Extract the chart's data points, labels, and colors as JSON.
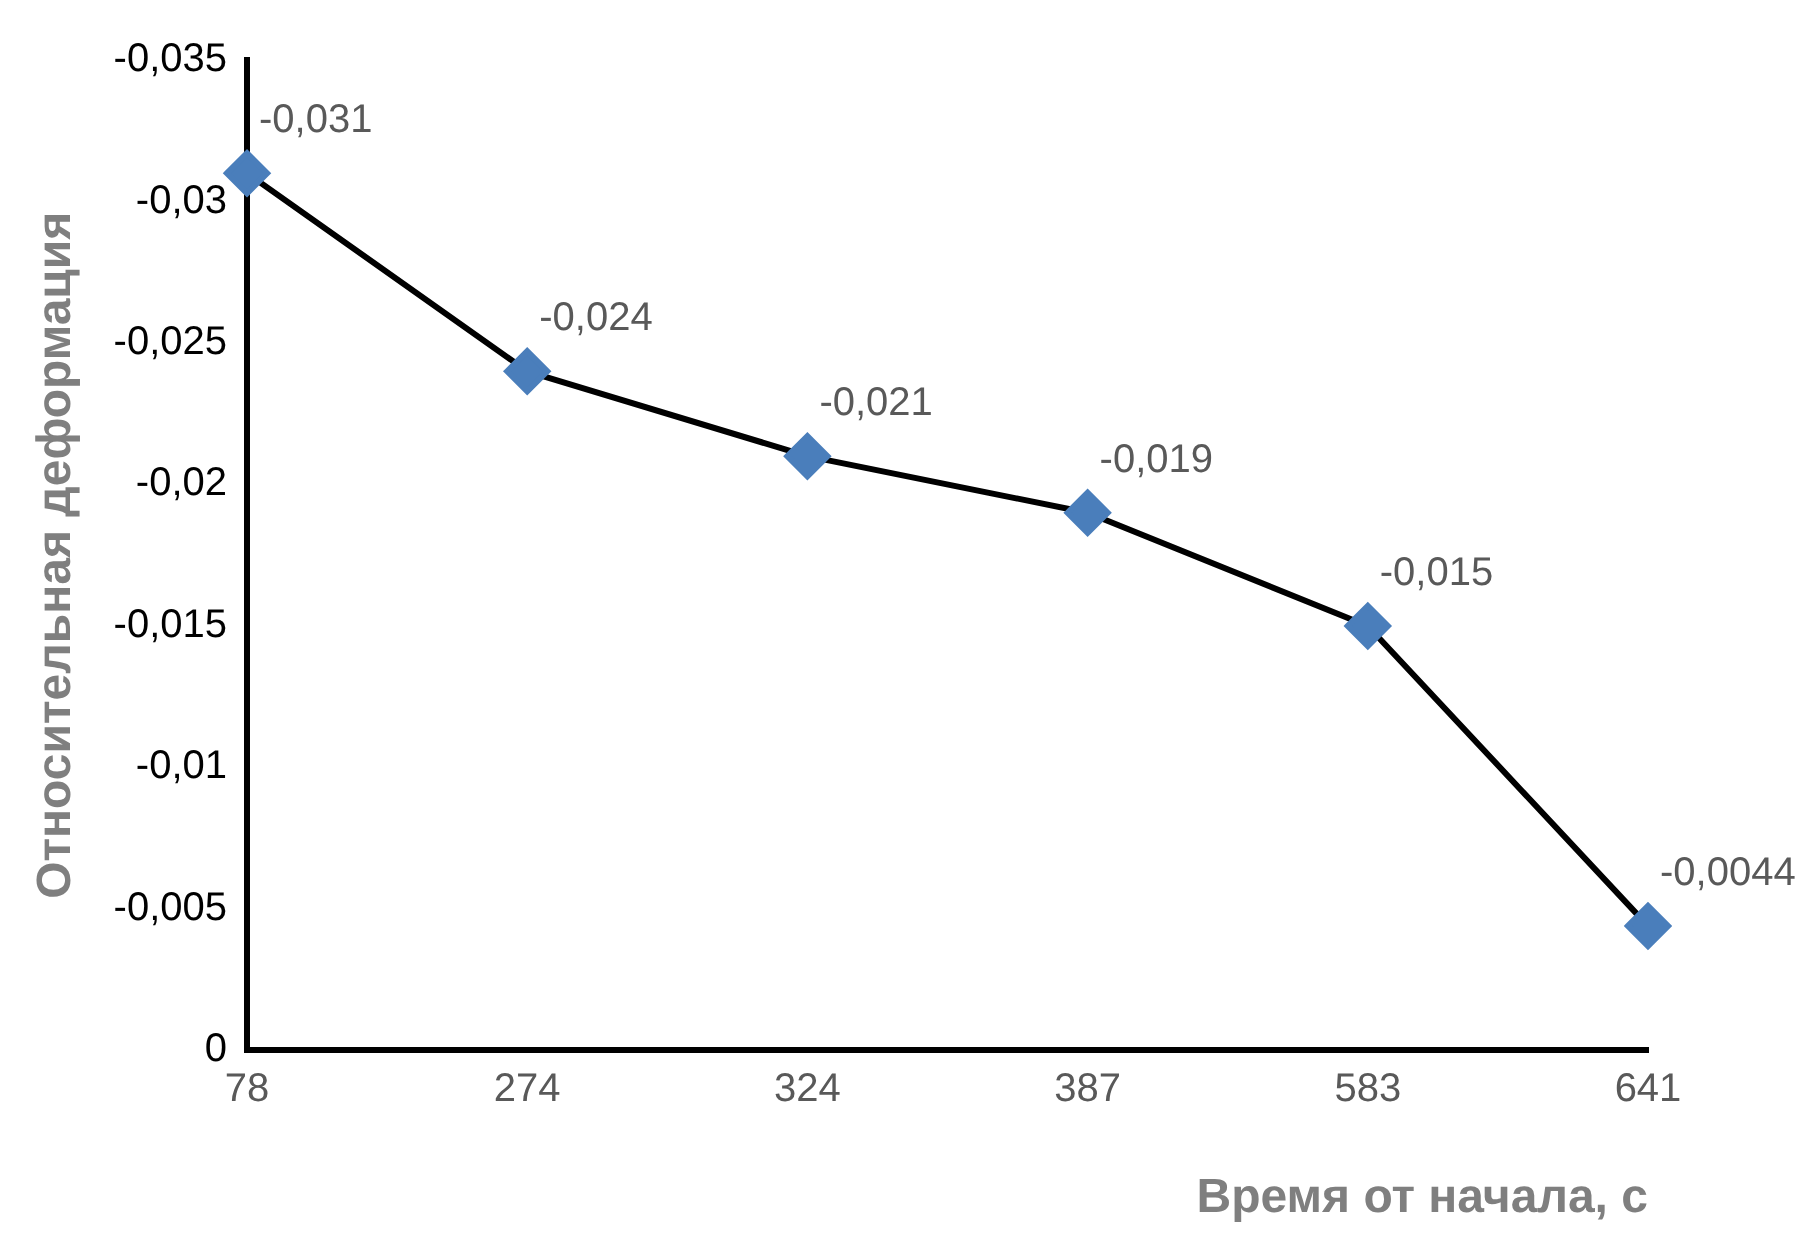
{
  "chart_data": {
    "type": "line",
    "xlabel": "Время от начала, с",
    "ylabel": "Относительная деформация",
    "categories": [
      "78",
      "274",
      "324",
      "387",
      "583",
      "641"
    ],
    "series": [
      {
        "color": "#4a7ebb",
        "values": [
          -0.031,
          -0.024,
          -0.021,
          -0.019,
          -0.015,
          -0.0044
        ],
        "value_labels": [
          "-0,031",
          "-0,024",
          "-0,021",
          "-0,019",
          "-0,015",
          "-0,0044"
        ]
      }
    ],
    "ylim": [
      0,
      -0.035
    ],
    "yticks": [
      {
        "value": 0,
        "label": "0"
      },
      {
        "value": -0.005,
        "label": "-0,005"
      },
      {
        "value": -0.01,
        "label": "-0,01"
      },
      {
        "value": -0.015,
        "label": "-0,015"
      },
      {
        "value": -0.02,
        "label": "-0,02"
      },
      {
        "value": -0.025,
        "label": "-0,025"
      },
      {
        "value": -0.03,
        "label": "-0,03"
      },
      {
        "value": -0.035,
        "label": "-0,035"
      }
    ],
    "marker": "diamond",
    "line_style": "solid",
    "grid": false,
    "legend": false
  }
}
